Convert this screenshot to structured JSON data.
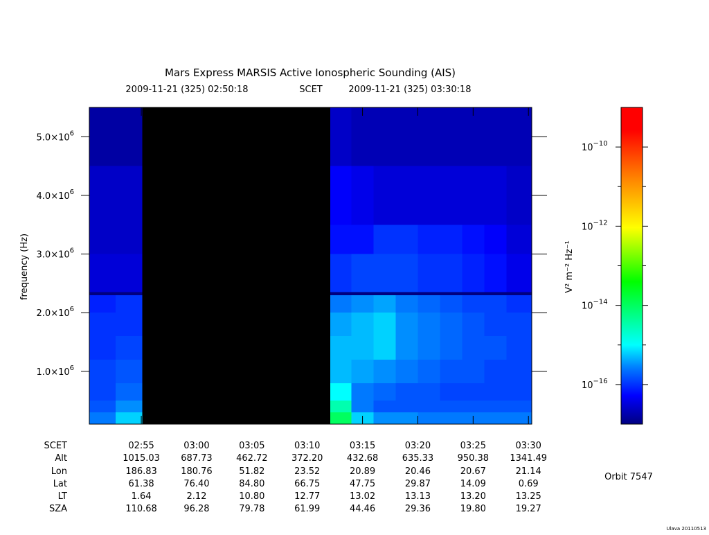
{
  "chart_data": {
    "type": "heatmap",
    "title": "Mars Express MARSIS Active Ionospheric Sounding (AIS)",
    "start_label": "2009-11-21 (325) 02:50:18",
    "time_system": "SCET",
    "end_label": "2009-11-21 (325) 03:30:18",
    "y_label": "frequency (Hz)",
    "colorbar_label": "V² m⁻² Hz⁻¹",
    "orbit_label": "Orbit 7547",
    "footer": "Ulava 20110513",
    "xlim": [
      "02:50:18",
      "03:30:18"
    ],
    "xticks": [
      "02:55",
      "03:00",
      "03:05",
      "03:10",
      "03:15",
      "03:20",
      "03:25",
      "03:30"
    ],
    "ylim": [
      100000,
      5500000
    ],
    "yticks": [
      {
        "value": 1000000,
        "label": "1.0×10",
        "exponent": "6"
      },
      {
        "value": 2000000,
        "label": "2.0×10",
        "exponent": "6"
      },
      {
        "value": 3000000,
        "label": "3.0×10",
        "exponent": "6"
      },
      {
        "value": 4000000,
        "label": "4.0×10",
        "exponent": "6"
      },
      {
        "value": 5000000,
        "label": "5.0×10",
        "exponent": "6"
      }
    ],
    "zlim": [
      1e-17,
      1e-09
    ],
    "log_z": true,
    "zticks": [
      {
        "value": 1e-10,
        "label": "10",
        "exponent": "−10"
      },
      {
        "value": 1e-12,
        "label": "10",
        "exponent": "−12"
      },
      {
        "value": 1e-14,
        "label": "10",
        "exponent": "−14"
      },
      {
        "value": 1e-16,
        "label": "10",
        "exponent": "−16"
      }
    ],
    "zminorticks": [
      1e-11,
      1e-13,
      1e-15
    ],
    "x_edges": [
      "02:50:18",
      "02:52:40",
      "02:55:05",
      "03:12:05",
      "03:14:00",
      "03:16:00",
      "03:18:00",
      "03:20:00",
      "03:22:00",
      "03:24:00",
      "03:26:00",
      "03:28:00",
      "03:30:18"
    ],
    "y_edges": [
      100000,
      300000,
      500000,
      800000,
      1200000,
      1600000,
      2000000,
      2300000,
      2350000,
      3000000,
      3500000,
      4500000,
      5500000
    ],
    "z_log10": [
      [
        -15.6,
        -15.2,
        null,
        -14.0,
        -15.2,
        -15.5,
        -15.5,
        -15.6,
        -15.6,
        -15.6,
        -15.6,
        -15.6
      ],
      [
        -15.8,
        -15.5,
        null,
        -14.5,
        -15.6,
        -15.8,
        -15.8,
        -15.8,
        -15.8,
        -15.8,
        -15.8,
        -15.8
      ],
      [
        -15.9,
        -15.7,
        null,
        -15.0,
        -15.6,
        -15.7,
        -15.8,
        -15.8,
        -15.9,
        -15.9,
        -15.9,
        -15.9
      ],
      [
        -15.9,
        -15.8,
        null,
        -15.3,
        -15.4,
        -15.5,
        -15.6,
        -15.7,
        -15.8,
        -15.8,
        -15.9,
        -15.9
      ],
      [
        -16.0,
        -15.9,
        null,
        -15.3,
        -15.3,
        -15.2,
        -15.5,
        -15.6,
        -15.7,
        -15.8,
        -15.8,
        -15.9
      ],
      [
        -16.0,
        -16.0,
        null,
        -15.4,
        -15.3,
        -15.2,
        -15.5,
        -15.6,
        -15.7,
        -15.8,
        -15.9,
        -15.9
      ],
      [
        -16.1,
        -16.0,
        null,
        -15.6,
        -15.5,
        -15.4,
        -15.6,
        -15.7,
        -15.8,
        -15.9,
        -15.9,
        -16.0
      ],
      [
        -17.0,
        -17.0,
        null,
        -17.0,
        -17.0,
        -17.0,
        -17.0,
        -17.0,
        -17.0,
        -17.0,
        -17.0,
        -17.0
      ],
      [
        -16.5,
        -16.5,
        null,
        -16.0,
        -15.9,
        -15.9,
        -15.9,
        -16.0,
        -16.0,
        -16.1,
        -16.2,
        -16.4
      ],
      [
        -16.6,
        -16.6,
        null,
        -16.2,
        -16.2,
        -16.0,
        -16.0,
        -16.1,
        -16.1,
        -16.2,
        -16.3,
        -16.5
      ],
      [
        -16.6,
        -16.6,
        null,
        -16.3,
        -16.4,
        -16.5,
        -16.5,
        -16.5,
        -16.5,
        -16.5,
        -16.5,
        -16.6
      ],
      [
        -16.8,
        -16.8,
        null,
        -16.6,
        -16.7,
        -16.7,
        -16.7,
        -16.7,
        -16.7,
        -16.7,
        -16.7,
        -16.7
      ]
    ],
    "ephemeris": {
      "row_labels": [
        "SCET",
        "Alt",
        "Lon",
        "Lat",
        "LT",
        "SZA"
      ],
      "rows": [
        [
          "1015.03",
          "687.73",
          "462.72",
          "372.20",
          "432.68",
          "635.33",
          "950.38",
          "1341.49"
        ],
        [
          "186.83",
          "180.76",
          "51.82",
          "23.52",
          "20.89",
          "20.46",
          "20.67",
          "21.14"
        ],
        [
          "61.38",
          "76.40",
          "84.80",
          "66.75",
          "47.75",
          "29.87",
          "14.09",
          "0.69"
        ],
        [
          "1.64",
          "2.12",
          "10.80",
          "12.77",
          "13.02",
          "13.13",
          "13.20",
          "13.25"
        ],
        [
          "110.68",
          "96.28",
          "79.78",
          "61.99",
          "44.46",
          "29.36",
          "19.80",
          "19.27"
        ]
      ]
    }
  }
}
